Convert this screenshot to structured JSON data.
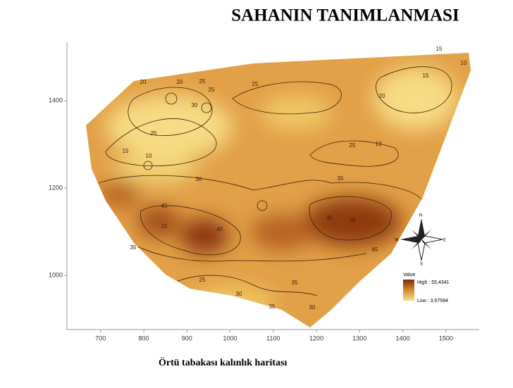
{
  "title": "SAHANIN TANIMLANMASI",
  "caption": "Örtü tabakası kalınlık haritası",
  "map": {
    "xlim": [
      622,
      1577
    ],
    "ylim": [
      876,
      1534
    ],
    "xticks": [
      700,
      800,
      900,
      1000,
      1100,
      1200,
      1300,
      1400,
      1500
    ],
    "yticks": [
      1000,
      1200,
      1400
    ],
    "legend": {
      "title": "Value",
      "high": "High : 55,4341",
      "low": "Low : 3,67584"
    },
    "compass": [
      "N",
      "E",
      "S",
      "W"
    ],
    "contour_labels": [
      15,
      20,
      25,
      20,
      30,
      25,
      15,
      20,
      25,
      10,
      25,
      30,
      10,
      15,
      25,
      13,
      35,
      45,
      40,
      50,
      45,
      35,
      25,
      30,
      35,
      35,
      30,
      45,
      15
    ]
  }
}
